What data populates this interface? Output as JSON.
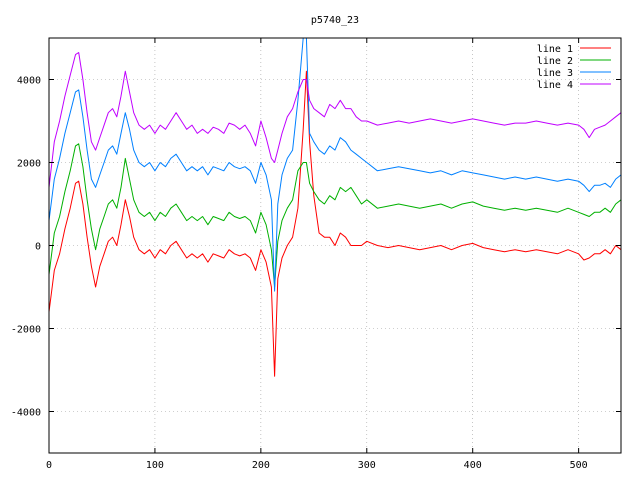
{
  "chart_data": {
    "type": "line",
    "title": "p5740_23",
    "xlabel": "",
    "ylabel": "",
    "xlim": [
      0,
      540
    ],
    "ylim": [
      -5000,
      5000
    ],
    "x_ticks": [
      0,
      100,
      200,
      300,
      400,
      500
    ],
    "y_ticks": [
      -4000,
      -2000,
      0,
      2000,
      4000
    ],
    "grid": true,
    "legend_position": "top-right",
    "series": [
      {
        "name": "line 1",
        "color": "#ff0000",
        "x": [
          0,
          5,
          10,
          15,
          20,
          25,
          28,
          32,
          36,
          40,
          44,
          48,
          52,
          56,
          60,
          64,
          68,
          72,
          76,
          80,
          85,
          90,
          95,
          100,
          105,
          110,
          115,
          120,
          125,
          130,
          135,
          140,
          145,
          150,
          155,
          160,
          165,
          170,
          175,
          180,
          185,
          190,
          195,
          200,
          205,
          210,
          213,
          216,
          220,
          225,
          230,
          235,
          240,
          243,
          246,
          250,
          255,
          260,
          265,
          270,
          275,
          280,
          285,
          290,
          295,
          300,
          310,
          320,
          330,
          340,
          350,
          360,
          370,
          380,
          390,
          400,
          410,
          420,
          430,
          440,
          450,
          460,
          470,
          480,
          490,
          500,
          505,
          510,
          515,
          520,
          525,
          530,
          535,
          540
        ],
        "y": [
          -1600,
          -600,
          -200,
          400,
          900,
          1500,
          1550,
          1000,
          200,
          -500,
          -1000,
          -500,
          -200,
          100,
          200,
          0,
          500,
          1100,
          700,
          200,
          -100,
          -200,
          -100,
          -300,
          -100,
          -200,
          0,
          100,
          -100,
          -300,
          -200,
          -300,
          -200,
          -400,
          -200,
          -250,
          -300,
          -100,
          -200,
          -250,
          -200,
          -300,
          -600,
          -100,
          -400,
          -1000,
          -3150,
          -800,
          -300,
          0,
          200,
          900,
          2800,
          4200,
          2500,
          1200,
          300,
          200,
          200,
          0,
          300,
          200,
          0,
          0,
          0,
          100,
          0,
          -50,
          0,
          -50,
          -100,
          -50,
          0,
          -100,
          0,
          50,
          -50,
          -100,
          -150,
          -100,
          -150,
          -100,
          -150,
          -200,
          -100,
          -200,
          -350,
          -300,
          -200,
          -200,
          -100,
          -200,
          0,
          -100
        ]
      },
      {
        "name": "line 2",
        "color": "#00b000",
        "x": [
          0,
          5,
          10,
          15,
          20,
          25,
          28,
          32,
          36,
          40,
          44,
          48,
          52,
          56,
          60,
          64,
          68,
          72,
          76,
          80,
          85,
          90,
          95,
          100,
          105,
          110,
          115,
          120,
          125,
          130,
          135,
          140,
          145,
          150,
          155,
          160,
          165,
          170,
          175,
          180,
          185,
          190,
          195,
          200,
          205,
          210,
          213,
          216,
          220,
          225,
          230,
          235,
          240,
          243,
          246,
          250,
          255,
          260,
          265,
          270,
          275,
          280,
          285,
          290,
          295,
          300,
          310,
          320,
          330,
          340,
          350,
          360,
          370,
          380,
          390,
          400,
          410,
          420,
          430,
          440,
          450,
          460,
          470,
          480,
          490,
          500,
          505,
          510,
          515,
          520,
          525,
          530,
          535,
          540
        ],
        "y": [
          -700,
          300,
          700,
          1300,
          1800,
          2400,
          2450,
          1900,
          1100,
          400,
          -100,
          400,
          700,
          1000,
          1100,
          900,
          1400,
          2100,
          1600,
          1100,
          800,
          700,
          800,
          600,
          800,
          700,
          900,
          1000,
          800,
          600,
          700,
          600,
          700,
          500,
          700,
          650,
          600,
          800,
          700,
          650,
          700,
          600,
          300,
          800,
          500,
          -100,
          -1000,
          100,
          600,
          900,
          1100,
          1800,
          2000,
          2000,
          1500,
          1300,
          1100,
          1000,
          1200,
          1100,
          1400,
          1300,
          1400,
          1200,
          1000,
          1100,
          900,
          950,
          1000,
          950,
          900,
          950,
          1000,
          900,
          1000,
          1050,
          950,
          900,
          850,
          900,
          850,
          900,
          850,
          800,
          900,
          800,
          750,
          700,
          800,
          800,
          900,
          800,
          1000,
          1100
        ]
      },
      {
        "name": "line 3",
        "color": "#0080ff",
        "x": [
          0,
          5,
          10,
          15,
          20,
          25,
          28,
          32,
          36,
          40,
          44,
          48,
          52,
          56,
          60,
          64,
          68,
          72,
          76,
          80,
          85,
          90,
          95,
          100,
          105,
          110,
          115,
          120,
          125,
          130,
          135,
          140,
          145,
          150,
          155,
          160,
          165,
          170,
          175,
          180,
          185,
          190,
          195,
          200,
          205,
          210,
          213,
          216,
          220,
          225,
          230,
          235,
          240,
          243,
          246,
          250,
          255,
          260,
          265,
          270,
          275,
          280,
          285,
          290,
          295,
          300,
          310,
          320,
          330,
          340,
          350,
          360,
          370,
          380,
          390,
          400,
          410,
          420,
          430,
          440,
          450,
          460,
          470,
          480,
          490,
          500,
          505,
          510,
          515,
          520,
          525,
          530,
          535,
          540
        ],
        "y": [
          600,
          1600,
          2100,
          2700,
          3200,
          3700,
          3750,
          3100,
          2300,
          1600,
          1400,
          1700,
          2000,
          2300,
          2400,
          2200,
          2700,
          3200,
          2800,
          2300,
          2000,
          1900,
          2000,
          1800,
          2000,
          1900,
          2100,
          2200,
          2000,
          1800,
          1900,
          1800,
          1900,
          1700,
          1900,
          1850,
          1800,
          2000,
          1900,
          1850,
          1900,
          1800,
          1500,
          2000,
          1700,
          1100,
          -1100,
          1000,
          1700,
          2100,
          2300,
          3500,
          5000,
          5000,
          2700,
          2500,
          2300,
          2200,
          2400,
          2300,
          2600,
          2500,
          2300,
          2200,
          2100,
          2000,
          1800,
          1850,
          1900,
          1850,
          1800,
          1750,
          1800,
          1700,
          1800,
          1750,
          1700,
          1650,
          1600,
          1650,
          1600,
          1650,
          1600,
          1550,
          1600,
          1550,
          1450,
          1300,
          1450,
          1450,
          1500,
          1400,
          1600,
          1700
        ]
      },
      {
        "name": "line 4",
        "color": "#c000ff",
        "x": [
          0,
          5,
          10,
          15,
          20,
          25,
          28,
          32,
          36,
          40,
          44,
          48,
          52,
          56,
          60,
          64,
          68,
          72,
          76,
          80,
          85,
          90,
          95,
          100,
          105,
          110,
          115,
          120,
          125,
          130,
          135,
          140,
          145,
          150,
          155,
          160,
          165,
          170,
          175,
          180,
          185,
          190,
          195,
          200,
          205,
          210,
          213,
          216,
          220,
          225,
          230,
          235,
          240,
          243,
          246,
          250,
          255,
          260,
          265,
          270,
          275,
          280,
          285,
          290,
          295,
          300,
          310,
          320,
          330,
          340,
          350,
          360,
          370,
          380,
          390,
          400,
          410,
          420,
          430,
          440,
          450,
          460,
          470,
          480,
          490,
          500,
          505,
          510,
          515,
          520,
          525,
          530,
          535,
          540
        ],
        "y": [
          1400,
          2500,
          3000,
          3600,
          4100,
          4600,
          4650,
          4000,
          3200,
          2500,
          2300,
          2600,
          2900,
          3200,
          3300,
          3100,
          3600,
          4200,
          3700,
          3200,
          2900,
          2800,
          2900,
          2700,
          2900,
          2800,
          3000,
          3200,
          3000,
          2800,
          2900,
          2700,
          2800,
          2700,
          2850,
          2800,
          2700,
          2950,
          2900,
          2800,
          2900,
          2700,
          2400,
          3000,
          2600,
          2100,
          2000,
          2300,
          2700,
          3100,
          3300,
          3700,
          4000,
          4000,
          3500,
          3300,
          3200,
          3100,
          3400,
          3300,
          3500,
          3300,
          3300,
          3100,
          3000,
          3000,
          2900,
          2950,
          3000,
          2950,
          3000,
          3050,
          3000,
          2950,
          3000,
          3050,
          3000,
          2950,
          2900,
          2950,
          2950,
          3000,
          2950,
          2900,
          2950,
          2900,
          2800,
          2600,
          2800,
          2850,
          2900,
          3000,
          3100,
          3200
        ]
      }
    ]
  }
}
